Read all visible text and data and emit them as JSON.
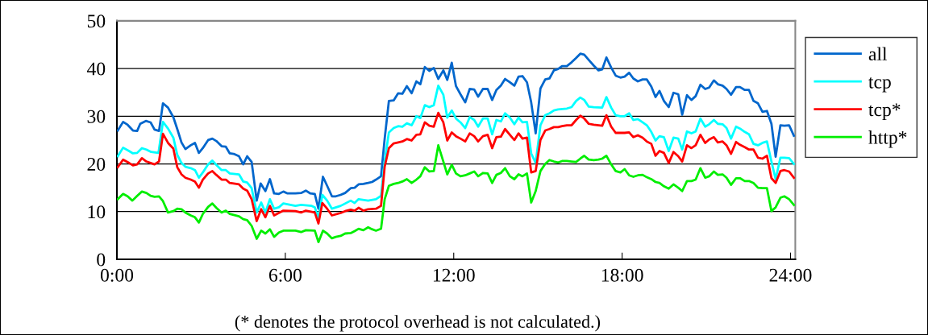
{
  "chart_data": {
    "type": "line",
    "annotations": [
      "(* denotes the protocol overhead is not calculated.)"
    ],
    "xlim": [
      0,
      24.17
    ],
    "xticks": [
      {
        "value": 0,
        "label": "0:00"
      },
      {
        "value": 6,
        "label": "6:00"
      },
      {
        "value": 12,
        "label": "12:00"
      },
      {
        "value": 18,
        "label": "18:00"
      },
      {
        "value": 24,
        "label": "24:00"
      }
    ],
    "ylim": [
      0,
      50
    ],
    "yticks": [
      0,
      10,
      20,
      30,
      40,
      50
    ],
    "grid": "y",
    "legend": "right",
    "marker": "none",
    "line_style": "solid",
    "series": [
      {
        "name": "all",
        "color": "#0066cc",
        "x": [
          0.03,
          0.22,
          0.38,
          0.57,
          0.72,
          0.83,
          1.03,
          1.2,
          1.34,
          1.5,
          1.64,
          1.82,
          2.01,
          2.15,
          2.3,
          2.44,
          2.63,
          2.78,
          2.92,
          3.06,
          3.25,
          3.4,
          3.54,
          3.73,
          3.88,
          4.02,
          4.16,
          4.35,
          4.5,
          4.64,
          4.8,
          4.98,
          5.12,
          5.29,
          5.45,
          5.6,
          5.77,
          5.93,
          6.08,
          6.36,
          6.56,
          6.73,
          6.89,
          7.05,
          7.18,
          7.34,
          7.49,
          7.66,
          7.8,
          7.97,
          8.13,
          8.33,
          8.47,
          8.61,
          8.78,
          8.95,
          9.09,
          9.23,
          9.41,
          9.54,
          9.69,
          9.86,
          10.02,
          10.17,
          10.33,
          10.5,
          10.67,
          10.81,
          10.97,
          11.13,
          11.29,
          11.45,
          11.63,
          11.77,
          11.93,
          12.08,
          12.24,
          12.41,
          12.57,
          12.73,
          12.87,
          13.04,
          13.21,
          13.37,
          13.52,
          13.68,
          13.83,
          14.0,
          14.16,
          14.31,
          14.45,
          14.61,
          14.76,
          14.92,
          15.09,
          15.26,
          15.41,
          15.57,
          15.72,
          15.86,
          16.03,
          16.2,
          16.36,
          16.51,
          16.65,
          16.81,
          16.99,
          17.16,
          17.29,
          17.44,
          17.61,
          17.77,
          17.94,
          18.09,
          18.25,
          18.4,
          18.56,
          18.73,
          18.88,
          19.04,
          19.19,
          19.33,
          19.49,
          19.66,
          19.83,
          20.0,
          20.14,
          20.31,
          20.47,
          20.62,
          20.79,
          20.96,
          21.1,
          21.27,
          21.41,
          21.58,
          21.72,
          21.88,
          22.06,
          22.2,
          22.37,
          22.52,
          22.68,
          22.84,
          23.0,
          23.16,
          23.32,
          23.47,
          23.64,
          23.78,
          23.95,
          24.12
        ],
        "values": [
          27.0,
          28.8,
          28.2,
          27.0,
          26.9,
          28.4,
          29.0,
          28.7,
          27.2,
          26.9,
          32.7,
          31.8,
          29.8,
          27.3,
          24.5,
          23.1,
          23.9,
          24.4,
          22.3,
          23.3,
          25.0,
          25.3,
          24.8,
          23.7,
          23.6,
          22.2,
          22.1,
          21.6,
          19.9,
          21.6,
          20.4,
          12.3,
          15.9,
          14.3,
          16.8,
          13.8,
          13.7,
          14.2,
          13.8,
          13.8,
          13.9,
          14.4,
          13.8,
          13.7,
          10.6,
          17.3,
          15.4,
          13.2,
          13.2,
          13.5,
          13.9,
          14.9,
          15.0,
          15.7,
          15.8,
          16.0,
          16.2,
          16.7,
          17.4,
          25.3,
          33.2,
          33.3,
          34.8,
          34.7,
          36.3,
          34.8,
          37.3,
          36.7,
          40.3,
          39.5,
          40.1,
          37.8,
          39.6,
          37.6,
          41.2,
          36.3,
          34.6,
          32.9,
          35.7,
          35.6,
          34.1,
          35.7,
          35.7,
          33.4,
          35.5,
          36.4,
          37.8,
          37.1,
          36.4,
          38.3,
          38.4,
          37.1,
          32.9,
          26.4,
          35.8,
          37.7,
          37.9,
          39.6,
          39.9,
          40.5,
          40.5,
          41.3,
          42.2,
          43.1,
          42.9,
          41.8,
          40.6,
          39.6,
          39.8,
          42.3,
          40.2,
          38.5,
          38.1,
          38.3,
          39.1,
          37.9,
          37.3,
          37.7,
          37.7,
          36.2,
          34.0,
          35.3,
          33.2,
          31.9,
          34.9,
          34.6,
          30.3,
          34.4,
          33.4,
          34.2,
          36.6,
          35.7,
          36.0,
          37.5,
          36.7,
          36.4,
          35.7,
          34.5,
          36.1,
          36.1,
          35.5,
          35.5,
          33.2,
          32.7,
          30.9,
          31.1,
          28.4,
          21.5,
          28.1,
          28.0,
          28.1,
          25.9
        ]
      },
      {
        "name": "tcp",
        "color": "#00ffff",
        "x": [
          0.03,
          0.22,
          0.43,
          0.57,
          0.72,
          0.89,
          1.05,
          1.22,
          1.48,
          1.64,
          1.82,
          2.01,
          2.15,
          2.3,
          2.44,
          2.63,
          2.78,
          2.92,
          3.06,
          3.25,
          3.4,
          3.54,
          3.73,
          3.88,
          4.02,
          4.35,
          4.5,
          4.64,
          4.8,
          4.98,
          5.14,
          5.29,
          5.45,
          5.6,
          5.77,
          5.93,
          6.36,
          6.56,
          6.94,
          7.05,
          7.18,
          7.32,
          7.49,
          7.66,
          7.97,
          8.33,
          8.47,
          8.61,
          8.95,
          9.23,
          9.41,
          9.54,
          9.69,
          9.86,
          10.02,
          10.17,
          10.33,
          10.5,
          10.67,
          10.81,
          10.97,
          11.13,
          11.29,
          11.45,
          11.63,
          11.77,
          11.93,
          12.08,
          12.24,
          12.41,
          12.57,
          12.73,
          12.87,
          13.04,
          13.21,
          13.37,
          13.52,
          13.68,
          13.83,
          14.0,
          14.16,
          14.31,
          14.45,
          14.61,
          14.76,
          14.92,
          15.09,
          15.26,
          15.41,
          15.57,
          15.72,
          16.03,
          16.2,
          16.36,
          16.51,
          16.65,
          16.81,
          16.99,
          17.29,
          17.44,
          17.61,
          17.77,
          17.94,
          18.09,
          18.25,
          18.4,
          18.56,
          18.73,
          18.88,
          19.04,
          19.19,
          19.33,
          19.49,
          19.66,
          19.83,
          20.0,
          20.14,
          20.31,
          20.47,
          20.62,
          20.79,
          20.96,
          21.1,
          21.27,
          21.41,
          21.58,
          21.72,
          21.88,
          22.06,
          22.2,
          22.37,
          22.52,
          22.68,
          22.84,
          23.0,
          23.16,
          23.32,
          23.47,
          23.64,
          23.78,
          23.95,
          24.12
        ],
        "values": [
          21.6,
          23.4,
          22.7,
          22.2,
          22.3,
          23.3,
          23.0,
          22.5,
          22.3,
          28.8,
          27.4,
          25.5,
          21.9,
          20.2,
          19.4,
          19.1,
          18.7,
          17.1,
          18.2,
          19.9,
          20.7,
          19.8,
          18.7,
          18.7,
          18.0,
          17.8,
          16.3,
          16.1,
          14.9,
          9.8,
          11.9,
          9.8,
          12.6,
          10.6,
          10.9,
          11.7,
          11.2,
          11.4,
          11.2,
          10.9,
          8.6,
          13.5,
          12.3,
          10.6,
          11.2,
          12.3,
          11.8,
          12.6,
          12.3,
          12.6,
          13.3,
          20.5,
          26.6,
          27.5,
          27.9,
          27.8,
          28.5,
          28.1,
          30.0,
          29.6,
          32.3,
          31.9,
          32.3,
          36.4,
          34.5,
          29.7,
          31.2,
          29.5,
          28.7,
          27.5,
          29.8,
          29.2,
          27.8,
          29.5,
          29.5,
          26.2,
          29.2,
          28.9,
          30.6,
          29.7,
          28.3,
          29.7,
          28.7,
          28.8,
          22.2,
          20.2,
          28.1,
          30.2,
          30.6,
          31.2,
          31.4,
          31.6,
          31.9,
          33.2,
          33.9,
          33.4,
          32.0,
          31.9,
          31.8,
          34.0,
          31.8,
          30.2,
          30.0,
          30.0,
          30.6,
          29.2,
          29.4,
          28.7,
          28.1,
          26.7,
          24.9,
          25.8,
          25.6,
          22.7,
          25.5,
          25.3,
          23.0,
          26.8,
          26.4,
          26.8,
          29.5,
          27.8,
          28.3,
          29.2,
          28.4,
          28.3,
          27.5,
          25.3,
          27.8,
          27.4,
          26.7,
          26.2,
          24.2,
          23.9,
          24.4,
          24.7,
          20.5,
          16.8,
          21.3,
          21.3,
          21.2,
          20.0
        ]
      },
      {
        "name": "tcp*",
        "color": "#ff0000",
        "x": [
          0.03,
          0.22,
          0.43,
          0.57,
          0.72,
          0.89,
          1.05,
          1.34,
          1.5,
          1.64,
          1.82,
          2.01,
          2.15,
          2.3,
          2.44,
          2.63,
          2.78,
          2.92,
          3.06,
          3.25,
          3.4,
          3.54,
          3.73,
          3.88,
          4.02,
          4.35,
          4.5,
          4.64,
          4.8,
          4.98,
          5.14,
          5.29,
          5.45,
          5.6,
          5.93,
          6.36,
          6.56,
          6.73,
          7.05,
          7.18,
          7.32,
          7.49,
          7.66,
          7.97,
          8.13,
          8.33,
          8.47,
          8.61,
          8.78,
          8.95,
          9.23,
          9.41,
          9.54,
          9.69,
          9.86,
          10.02,
          10.17,
          10.33,
          10.5,
          10.67,
          10.81,
          10.97,
          11.13,
          11.29,
          11.45,
          11.63,
          11.77,
          11.93,
          12.08,
          12.24,
          12.41,
          12.57,
          12.73,
          12.87,
          13.04,
          13.21,
          13.37,
          13.52,
          13.68,
          13.83,
          14.0,
          14.16,
          14.31,
          14.45,
          14.61,
          14.76,
          14.92,
          15.09,
          15.26,
          15.41,
          15.57,
          15.72,
          15.86,
          16.03,
          16.2,
          16.36,
          16.51,
          16.65,
          16.81,
          16.99,
          17.29,
          17.44,
          17.61,
          17.77,
          18.09,
          18.25,
          18.4,
          18.56,
          18.73,
          18.88,
          19.04,
          19.19,
          19.33,
          19.49,
          19.66,
          19.83,
          20.0,
          20.14,
          20.31,
          20.47,
          20.62,
          20.79,
          20.96,
          21.1,
          21.27,
          21.41,
          21.58,
          21.72,
          21.88,
          22.06,
          22.2,
          22.37,
          22.52,
          22.68,
          22.84,
          23.0,
          23.16,
          23.32,
          23.47,
          23.64,
          23.78,
          23.95,
          24.12
        ],
        "values": [
          19.3,
          20.9,
          20.2,
          19.7,
          19.9,
          21.2,
          20.5,
          19.9,
          20.5,
          26.3,
          24.4,
          23.2,
          19.3,
          17.8,
          17.1,
          16.7,
          16.3,
          15.0,
          16.7,
          18.0,
          18.5,
          17.7,
          16.7,
          16.7,
          16.0,
          15.7,
          14.8,
          14.4,
          12.6,
          8.0,
          10.5,
          8.8,
          11.2,
          9.2,
          10.2,
          10.1,
          9.8,
          10.2,
          9.8,
          7.5,
          11.8,
          10.6,
          9.2,
          9.7,
          10.1,
          10.4,
          10.2,
          10.8,
          10.2,
          10.5,
          10.6,
          11.2,
          19.4,
          23.3,
          24.3,
          24.5,
          24.7,
          25.2,
          24.9,
          26.1,
          26.2,
          28.7,
          28.0,
          27.8,
          30.7,
          28.7,
          24.9,
          26.6,
          25.8,
          25.3,
          24.7,
          26.4,
          25.8,
          24.7,
          25.8,
          26.1,
          23.3,
          25.6,
          25.7,
          27.3,
          26.1,
          25.0,
          26.4,
          25.3,
          25.5,
          18.2,
          18.5,
          25.0,
          27.0,
          27.3,
          27.7,
          27.7,
          27.9,
          28.1,
          28.1,
          29.2,
          30.1,
          29.5,
          28.4,
          28.2,
          28.0,
          30.2,
          27.8,
          26.5,
          26.5,
          26.6,
          25.6,
          26.0,
          25.5,
          24.7,
          24.2,
          21.7,
          22.7,
          22.3,
          20.2,
          22.5,
          21.6,
          20.5,
          23.9,
          23.3,
          23.9,
          26.1,
          24.4,
          25.1,
          25.6,
          24.5,
          24.7,
          23.9,
          22.1,
          24.6,
          24.0,
          23.5,
          23.0,
          23.0,
          21.3,
          21.1,
          21.7,
          17.0,
          16.0,
          18.5,
          18.7,
          18.4,
          17.1
        ]
      },
      {
        "name": "http*",
        "color": "#00ee00",
        "x": [
          0.03,
          0.22,
          0.38,
          0.55,
          0.72,
          0.89,
          1.05,
          1.2,
          1.34,
          1.5,
          1.64,
          1.82,
          2.01,
          2.15,
          2.3,
          2.44,
          2.63,
          2.78,
          2.92,
          3.06,
          3.25,
          3.4,
          3.54,
          3.73,
          3.88,
          4.02,
          4.35,
          4.5,
          4.64,
          4.8,
          4.98,
          5.14,
          5.29,
          5.45,
          5.6,
          5.77,
          5.93,
          6.36,
          6.56,
          6.73,
          7.05,
          7.18,
          7.34,
          7.49,
          7.66,
          7.8,
          7.97,
          8.13,
          8.33,
          8.47,
          8.61,
          8.78,
          8.95,
          9.09,
          9.23,
          9.41,
          9.54,
          9.69,
          9.86,
          10.02,
          10.17,
          10.33,
          10.5,
          10.67,
          10.81,
          10.97,
          11.13,
          11.29,
          11.45,
          11.63,
          11.77,
          11.93,
          12.08,
          12.24,
          12.41,
          12.57,
          12.73,
          12.87,
          13.04,
          13.21,
          13.37,
          13.52,
          13.68,
          13.83,
          14.0,
          14.16,
          14.31,
          14.45,
          14.61,
          14.76,
          14.92,
          15.09,
          15.26,
          15.41,
          15.57,
          15.72,
          15.86,
          16.03,
          16.2,
          16.36,
          16.51,
          16.65,
          16.81,
          16.99,
          17.16,
          17.29,
          17.44,
          17.61,
          17.77,
          17.94,
          18.09,
          18.25,
          18.4,
          18.56,
          18.73,
          18.88,
          19.04,
          19.19,
          19.33,
          19.49,
          19.66,
          19.83,
          20.0,
          20.14,
          20.31,
          20.47,
          20.62,
          20.79,
          20.96,
          21.1,
          21.27,
          21.41,
          21.58,
          21.72,
          21.88,
          22.06,
          22.2,
          22.37,
          22.52,
          22.68,
          22.84,
          23.0,
          23.16,
          23.32,
          23.47,
          23.64,
          23.78,
          23.95,
          24.12
        ],
        "values": [
          12.6,
          13.7,
          13.2,
          12.3,
          13.3,
          14.2,
          13.9,
          13.3,
          13.1,
          13.2,
          12.2,
          9.8,
          10.1,
          10.6,
          10.5,
          9.8,
          9.2,
          8.8,
          7.7,
          9.5,
          11.0,
          11.7,
          10.8,
          9.8,
          10.2,
          9.5,
          9.0,
          8.4,
          8.2,
          7.0,
          4.3,
          6.0,
          5.4,
          6.3,
          4.7,
          5.6,
          6.0,
          6.0,
          5.7,
          6.1,
          6.0,
          3.6,
          6.0,
          5.4,
          4.4,
          4.7,
          4.9,
          5.4,
          5.5,
          5.9,
          6.4,
          6.1,
          6.7,
          6.3,
          6.0,
          6.4,
          12.6,
          15.4,
          15.8,
          16.0,
          16.3,
          16.8,
          16.0,
          16.7,
          17.4,
          19.3,
          18.4,
          18.5,
          23.9,
          20.5,
          17.8,
          19.8,
          18.0,
          17.4,
          17.6,
          18.0,
          18.4,
          17.4,
          18.1,
          18.0,
          16.0,
          17.7,
          18.1,
          19.1,
          17.4,
          16.8,
          17.8,
          17.4,
          18.0,
          11.9,
          14.3,
          18.5,
          20.0,
          20.8,
          20.5,
          20.3,
          20.6,
          20.6,
          20.5,
          20.4,
          21.1,
          21.7,
          20.9,
          20.8,
          20.9,
          21.1,
          21.7,
          19.9,
          18.5,
          18.2,
          18.9,
          17.6,
          17.3,
          17.6,
          17.7,
          17.2,
          16.8,
          16.2,
          16.0,
          15.3,
          14.8,
          15.7,
          15.0,
          14.3,
          16.4,
          16.4,
          16.7,
          19.1,
          17.1,
          17.4,
          18.4,
          17.7,
          17.8,
          17.1,
          15.6,
          17.0,
          17.0,
          16.4,
          16.4,
          16.0,
          15.0,
          14.9,
          14.9,
          10.1,
          10.9,
          12.9,
          13.2,
          12.6,
          11.4
        ]
      }
    ]
  }
}
